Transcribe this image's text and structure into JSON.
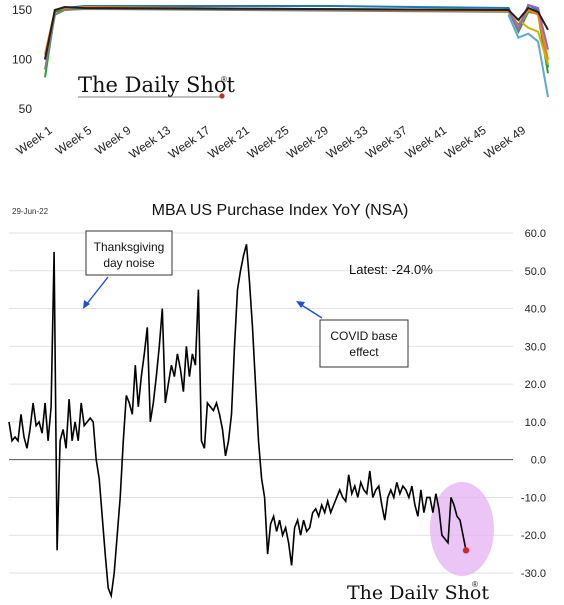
{
  "chart_data": [
    {
      "type": "line",
      "partial": true,
      "y_tick_labels": [
        "150",
        "100",
        "50"
      ],
      "x_tick_labels": [
        "Week 1",
        "Week 5",
        "Week 9",
        "Week 13",
        "Week 17",
        "Week 21",
        "Week 25",
        "Week 29",
        "Week 33",
        "Week 37",
        "Week 41",
        "Week 45",
        "Week 49"
      ],
      "watermark": "The Daily Shot",
      "ylim": [
        50,
        155
      ],
      "x_range_weeks": [
        1,
        52
      ],
      "series": [
        {
          "color": "#1f77b4",
          "x": [
            1,
            2,
            3,
            5,
            30,
            48,
            49,
            50,
            51,
            52
          ],
          "values": [
            100,
            150,
            152,
            154,
            154,
            152,
            130,
            155,
            150,
            92
          ]
        },
        {
          "color": "#2ca02c",
          "x": [
            1,
            2,
            3,
            5,
            48,
            49,
            50,
            51,
            52
          ],
          "values": [
            82,
            148,
            150,
            152,
            150,
            128,
            148,
            146,
            86
          ]
        },
        {
          "color": "#7f7f7f",
          "x": [
            1,
            2,
            3,
            5,
            48,
            49,
            50,
            51,
            52
          ],
          "values": [
            90,
            145,
            150,
            151,
            148,
            135,
            150,
            147,
            95
          ]
        },
        {
          "color": "#ff7f0e",
          "x": [
            1,
            2,
            3,
            5,
            48,
            49,
            50,
            51,
            52
          ],
          "values": [
            105,
            150,
            152,
            153,
            149,
            132,
            150,
            145,
            100
          ]
        },
        {
          "color": "#d4b000",
          "x": [
            48,
            49,
            50,
            51,
            52
          ],
          "values": [
            146,
            140,
            132,
            128,
            95
          ]
        },
        {
          "color": "#9467bd",
          "x": [
            48,
            49,
            50,
            51,
            52
          ],
          "values": [
            150,
            130,
            155,
            152,
            110
          ]
        },
        {
          "color": "#5fa8d3",
          "x": [
            48,
            49,
            50,
            51,
            52
          ],
          "values": [
            145,
            122,
            126,
            118,
            62
          ]
        },
        {
          "color": "#202020",
          "x": [
            1,
            2,
            3,
            5,
            48,
            49,
            50,
            51,
            52
          ],
          "values": [
            100,
            150,
            153,
            152,
            150,
            140,
            152,
            148,
            130
          ]
        }
      ]
    },
    {
      "type": "line",
      "title": "MBA US Purchase Index YoY (NSA)",
      "date_label": "29-Jun-22",
      "ylim": [
        -30,
        60
      ],
      "y_tick_labels": [
        "60.0",
        "50.0",
        "40.0",
        "30.0",
        "20.0",
        "10.0",
        "0.0",
        "-10.0",
        "-20.0",
        "-30.0"
      ],
      "watermark": "The Daily Shot",
      "annotations": [
        {
          "text_lines": [
            "Thanksgiving",
            "day noise"
          ]
        },
        {
          "text_lines": [
            "COVID base",
            "effect"
          ]
        },
        {
          "text": "Latest:  -24.0%"
        }
      ],
      "series": [
        {
          "color": "#000000",
          "x": [
            0,
            1,
            2,
            3,
            4,
            5,
            6,
            7,
            8,
            9,
            10,
            11,
            12,
            13,
            14,
            15,
            16,
            17,
            18,
            19,
            20,
            21,
            22,
            23,
            24,
            25,
            26,
            27,
            28,
            29,
            30,
            31,
            32,
            33,
            34,
            35,
            36,
            37,
            38,
            39,
            40,
            41,
            42,
            43,
            44,
            45,
            46,
            47,
            48,
            49,
            50,
            51,
            52,
            53,
            54,
            55,
            56,
            57,
            58,
            59,
            60,
            61,
            62,
            63,
            64,
            65,
            66,
            67,
            68,
            69,
            70,
            71,
            72,
            73,
            74,
            75,
            76,
            77,
            78,
            79,
            80,
            81,
            82,
            83,
            84,
            85,
            86,
            87,
            88,
            89,
            90,
            91,
            92,
            93,
            94,
            95,
            96,
            97,
            98,
            99,
            100,
            101,
            102,
            103,
            104,
            105,
            106,
            107,
            108,
            109,
            110,
            111,
            112,
            113,
            114,
            115,
            116,
            117,
            118,
            119,
            120,
            121,
            122,
            123,
            124,
            125,
            126,
            127,
            128,
            129,
            130,
            131,
            132,
            133,
            134,
            135,
            136,
            137,
            138,
            139,
            140,
            141,
            142,
            143,
            144,
            145,
            146,
            147,
            148,
            149,
            150,
            151,
            152,
            153,
            154,
            155,
            156,
            157,
            158,
            159,
            160,
            161,
            162,
            163,
            164,
            165,
            166,
            167,
            168,
            169,
            170,
            171,
            172,
            173,
            174,
            175,
            176,
            177,
            178,
            179,
            180,
            181,
            182,
            183,
            184,
            185
          ],
          "values": [
            10,
            5,
            6,
            5,
            12,
            6,
            3,
            8,
            15,
            9,
            10,
            7,
            15,
            5,
            14,
            55,
            -24,
            5,
            8,
            3,
            16,
            5,
            10,
            5,
            15,
            9,
            10,
            11,
            10,
            0,
            -5,
            -15,
            -25,
            -34,
            -36,
            -30,
            -20,
            -10,
            5,
            17,
            15,
            12,
            25,
            14,
            22,
            28,
            35,
            10,
            15,
            22,
            30,
            40,
            15,
            20,
            25,
            22,
            28,
            24,
            18,
            30,
            22,
            28,
            25,
            45,
            5,
            3,
            15,
            14,
            13,
            15,
            12,
            8,
            1,
            5,
            12,
            30,
            45,
            50,
            54,
            57,
            47,
            35,
            20,
            5,
            -5,
            -10,
            -25,
            -17,
            -15,
            -19,
            -16,
            -20,
            -18,
            -22,
            -28,
            -18,
            -16,
            -20,
            -16,
            -19,
            -18,
            -14,
            -13,
            -15,
            -12,
            -14,
            -11,
            -14,
            -12,
            -10,
            -8,
            -10,
            -11,
            -4,
            -9,
            -7,
            -10,
            -6,
            -8,
            -9,
            -3,
            -10,
            -8,
            -7,
            -12,
            -16,
            -10,
            -8,
            -10,
            -6,
            -9,
            -7,
            -8,
            -10,
            -7,
            -12,
            -15,
            -8,
            -14,
            -10,
            -10,
            -14,
            -9,
            -13,
            -20,
            -21,
            -22,
            -10,
            -12,
            -15,
            -16,
            -20,
            -24,
            -24,
            -24,
            -24,
            -24,
            -24,
            -24,
            -24,
            -24,
            -24,
            -24,
            -24,
            -24,
            -24,
            -24,
            -24,
            -24,
            -24,
            -24,
            -24,
            -24,
            -24,
            -24,
            -24,
            -24,
            -24,
            -24,
            -24,
            -24,
            -24,
            -24,
            -24,
            -24,
            -24
          ],
          "last_index": 152
        }
      ]
    }
  ]
}
